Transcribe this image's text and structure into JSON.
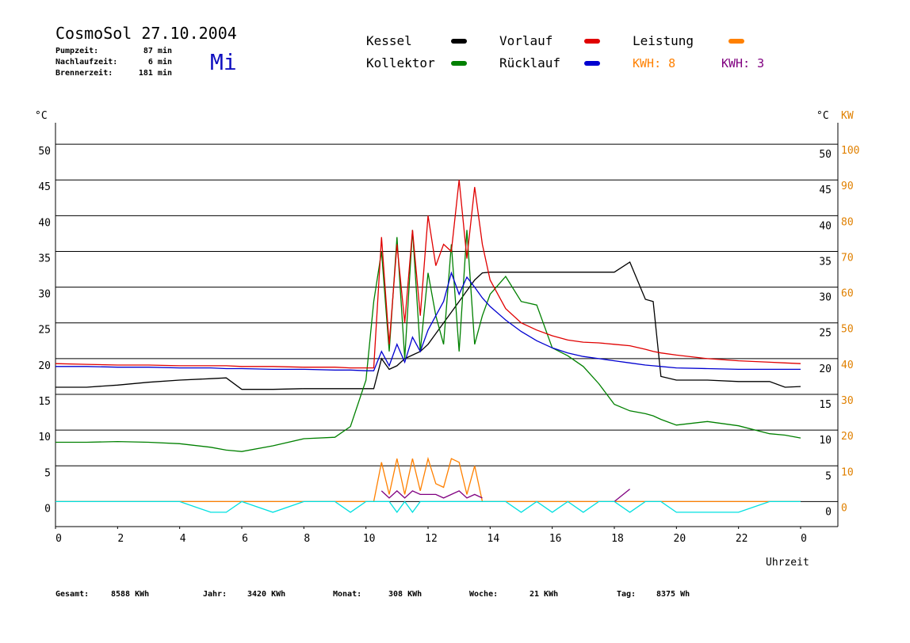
{
  "header": {
    "title": "CosmoSol 27.10.2004",
    "weekday": "Mi",
    "info": [
      {
        "label": "Pumpzeit:",
        "value": "87 min"
      },
      {
        "label": "Nachlaufzeit:",
        "value": "6 min"
      },
      {
        "label": "Brennerzeit:",
        "value": "181 min"
      }
    ]
  },
  "chart_data": {
    "type": "line",
    "x": [
      0,
      1,
      2,
      3,
      4,
      5,
      5.5,
      6,
      7,
      8,
      9,
      9.5,
      10,
      10.25,
      10.5,
      10.75,
      11,
      11.25,
      11.5,
      11.75,
      12,
      12.25,
      12.5,
      12.75,
      13,
      13.25,
      13.5,
      13.75,
      14,
      14.5,
      15,
      15.5,
      16,
      16.5,
      17,
      17.5,
      18,
      18.5,
      19,
      19.25,
      19.5,
      20,
      21,
      22,
      23,
      23.5,
      24
    ],
    "xlim": [
      0,
      25.2
    ],
    "xticks": [
      0,
      2,
      4,
      6,
      8,
      10,
      12,
      14,
      16,
      18,
      20,
      22,
      {
        "value": 24,
        "label": "0"
      }
    ],
    "x_label": "Uhrzeit",
    "y_unit": "°C",
    "y2_unit": "KW",
    "ylim": [
      -3.5,
      53
    ],
    "yticks": [
      0,
      5,
      10,
      15,
      20,
      25,
      30,
      35,
      40,
      45,
      50
    ],
    "y2lim": [
      -7,
      106
    ],
    "y2ticks": [
      0,
      10,
      20,
      30,
      40,
      50,
      60,
      70,
      80,
      90,
      100
    ],
    "grid": true,
    "series": [
      {
        "name": "Kessel",
        "color": "#000000",
        "values": [
          16,
          16,
          16.3,
          16.7,
          17,
          17.2,
          17.3,
          15.7,
          15.7,
          15.8,
          15.8,
          15.8,
          15.8,
          15.8,
          20,
          18.5,
          19,
          20,
          20.5,
          21,
          22,
          23.5,
          25,
          26.5,
          28,
          29.5,
          31,
          32,
          32.1,
          32.1,
          32.1,
          32.1,
          32.1,
          32.1,
          32.1,
          32.1,
          32.1,
          33.5,
          28.3,
          28,
          17.5,
          17,
          17,
          16.8,
          16.8,
          16,
          16.1
        ]
      },
      {
        "name": "Kollektor",
        "color": "#008000",
        "values": [
          8.3,
          8.3,
          8.4,
          8.3,
          8.1,
          7.6,
          7.2,
          7,
          7.8,
          8.8,
          9,
          10.5,
          17,
          28,
          35,
          21,
          37,
          20,
          38,
          21,
          32,
          26,
          22,
          36,
          21,
          38,
          22,
          26,
          29,
          31.5,
          28,
          27.5,
          21.5,
          20.4,
          18.9,
          16.5,
          13.6,
          12.7,
          12.3,
          12,
          11.5,
          10.7,
          11.2,
          10.6,
          9.5,
          9.3,
          8.9
        ]
      },
      {
        "name": "Vorlauf",
        "color": "#e00000",
        "values": [
          19.3,
          19.2,
          19.1,
          19.1,
          19,
          19,
          19,
          18.9,
          18.9,
          18.8,
          18.8,
          18.7,
          18.7,
          18.7,
          37,
          22,
          36,
          25,
          38,
          26,
          40,
          33,
          36,
          35,
          45,
          34,
          44,
          36,
          31,
          27,
          25,
          24,
          23.2,
          22.6,
          22.3,
          22.2,
          22,
          21.8,
          21.3,
          21,
          20.8,
          20.5,
          20,
          19.7,
          19.5,
          19.4,
          19.3
        ]
      },
      {
        "name": "Rücklauf",
        "color": "#0000d0",
        "values": [
          18.9,
          18.9,
          18.8,
          18.8,
          18.7,
          18.7,
          18.6,
          18.6,
          18.5,
          18.5,
          18.4,
          18.4,
          18.3,
          18.3,
          21,
          19,
          22,
          19.5,
          23,
          21,
          24,
          26,
          28,
          32,
          29,
          31.4,
          30,
          28.5,
          27.3,
          25.4,
          23.8,
          22.5,
          21.5,
          20.8,
          20.3,
          20,
          19.7,
          19.4,
          19.1,
          19,
          18.9,
          18.7,
          18.6,
          18.5,
          18.5,
          18.5,
          18.5
        ]
      },
      {
        "name": "Leistung",
        "color": "#ff8000",
        "axis": "y2",
        "values": [
          0,
          0,
          0,
          0,
          0,
          0,
          0,
          0,
          0,
          0,
          0,
          0,
          0,
          0,
          11,
          2,
          12,
          2,
          12,
          3,
          12,
          5,
          4,
          12,
          11,
          2,
          10,
          0,
          0,
          0,
          0,
          0,
          0,
          0,
          0,
          0,
          0,
          0,
          0,
          0,
          0,
          0,
          0,
          0,
          0,
          0,
          0
        ]
      },
      {
        "color": "#800080",
        "axis": "y2",
        "values": [
          null,
          null,
          null,
          null,
          null,
          null,
          null,
          null,
          null,
          null,
          null,
          null,
          null,
          null,
          3,
          1,
          3,
          1,
          3,
          2,
          2,
          2,
          1,
          2,
          3,
          1,
          2,
          1,
          null,
          null,
          null,
          null,
          null,
          null,
          null,
          null,
          0,
          3.5,
          null,
          null,
          null,
          null,
          null,
          null,
          null,
          null,
          null
        ]
      },
      {
        "color": "#00e0e0",
        "values": [
          0,
          0,
          0,
          0,
          0,
          -1.5,
          -1.5,
          0,
          -1.5,
          0,
          0,
          -1.5,
          0,
          0,
          0,
          0,
          -1.5,
          0,
          -1.5,
          0,
          0,
          0,
          0,
          0,
          0,
          0,
          0,
          0,
          0,
          0,
          -1.5,
          0,
          -1.5,
          0,
          -1.5,
          0,
          0,
          -1.5,
          0,
          0,
          0,
          -1.5,
          -1.5,
          -1.5,
          0,
          0,
          0
        ]
      }
    ],
    "annotations": [
      {
        "text": "KWH: 8",
        "color": "#ff8000"
      },
      {
        "text": "KWH: 3",
        "color": "#800080"
      }
    ]
  },
  "footer": [
    {
      "label": "Gesamt:",
      "value": "8588 KWh"
    },
    {
      "label": "Jahr:",
      "value": "3420 KWh"
    },
    {
      "label": "Monat:",
      "value": "308 KWh"
    },
    {
      "label": "Woche:",
      "value": "21 KWh"
    },
    {
      "label": "Tag:",
      "value": "8375 Wh"
    }
  ]
}
